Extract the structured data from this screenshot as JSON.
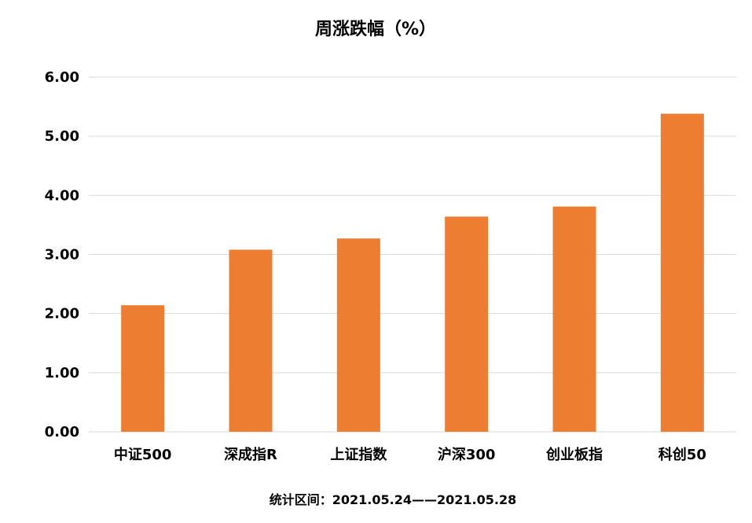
{
  "chart_data": {
    "type": "bar",
    "title": "周涨跌幅（%）",
    "categories": [
      "中证500",
      "深成指R",
      "上证指数",
      "沪深300",
      "创业板指",
      "科创50"
    ],
    "values": [
      2.14,
      3.08,
      3.27,
      3.64,
      3.81,
      5.38
    ],
    "y_ticks": [
      "0.00",
      "1.00",
      "2.00",
      "3.00",
      "4.00",
      "5.00",
      "6.00"
    ],
    "ylim": [
      0,
      6
    ],
    "xlabel": "",
    "ylabel": "",
    "grid": true,
    "bar_color": "#ED7D31",
    "gridline_color": "#D9D9D9"
  },
  "footnote": "统计区间：2021.05.24——2021.05.28"
}
